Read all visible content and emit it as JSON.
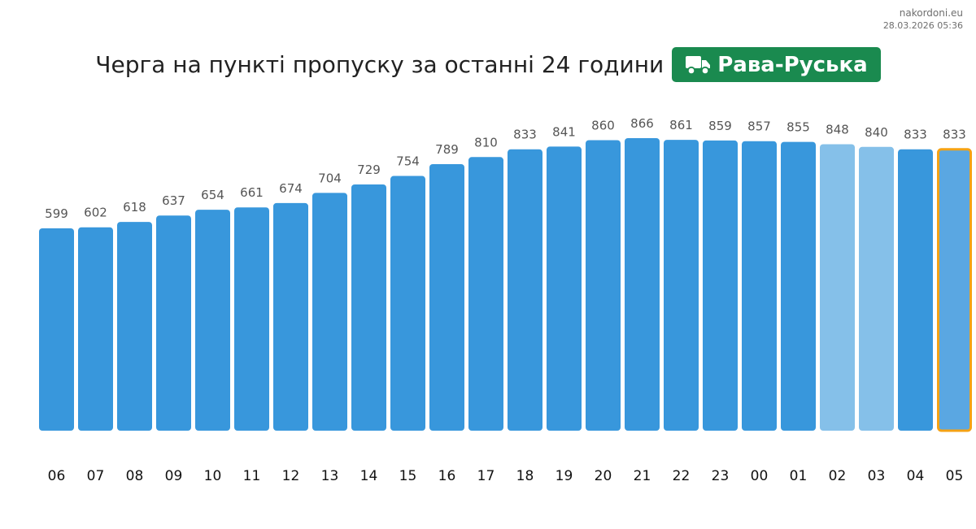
{
  "site": {
    "name": "nakordoni.eu",
    "timestamp": "28.03.2026 05:36"
  },
  "title": "Черга на пункті пропуску за останні 24 години",
  "checkpoint": {
    "name": "Рава-Руська",
    "icon": "truck-icon",
    "color": "#1a8a4f"
  },
  "colors": {
    "bar": "#3897dc",
    "bar_light": "#85c0e9",
    "bar_current": "#5aa7e2",
    "current_outline": "#f5a214",
    "value_label": "#555555",
    "tick_label": "#111111"
  },
  "chart_data": {
    "type": "bar",
    "categories": [
      "06",
      "07",
      "08",
      "09",
      "10",
      "11",
      "12",
      "13",
      "14",
      "15",
      "16",
      "17",
      "18",
      "19",
      "20",
      "21",
      "22",
      "23",
      "00",
      "01",
      "02",
      "03",
      "04",
      "05"
    ],
    "values": [
      599,
      602,
      618,
      637,
      654,
      661,
      674,
      704,
      729,
      754,
      789,
      810,
      833,
      841,
      860,
      866,
      861,
      859,
      857,
      855,
      848,
      840,
      833,
      833
    ],
    "light_categories": [
      "02",
      "03"
    ],
    "highlighted_category": "05",
    "ylim": [
      0,
      866
    ],
    "grid": false,
    "legend": "none"
  }
}
